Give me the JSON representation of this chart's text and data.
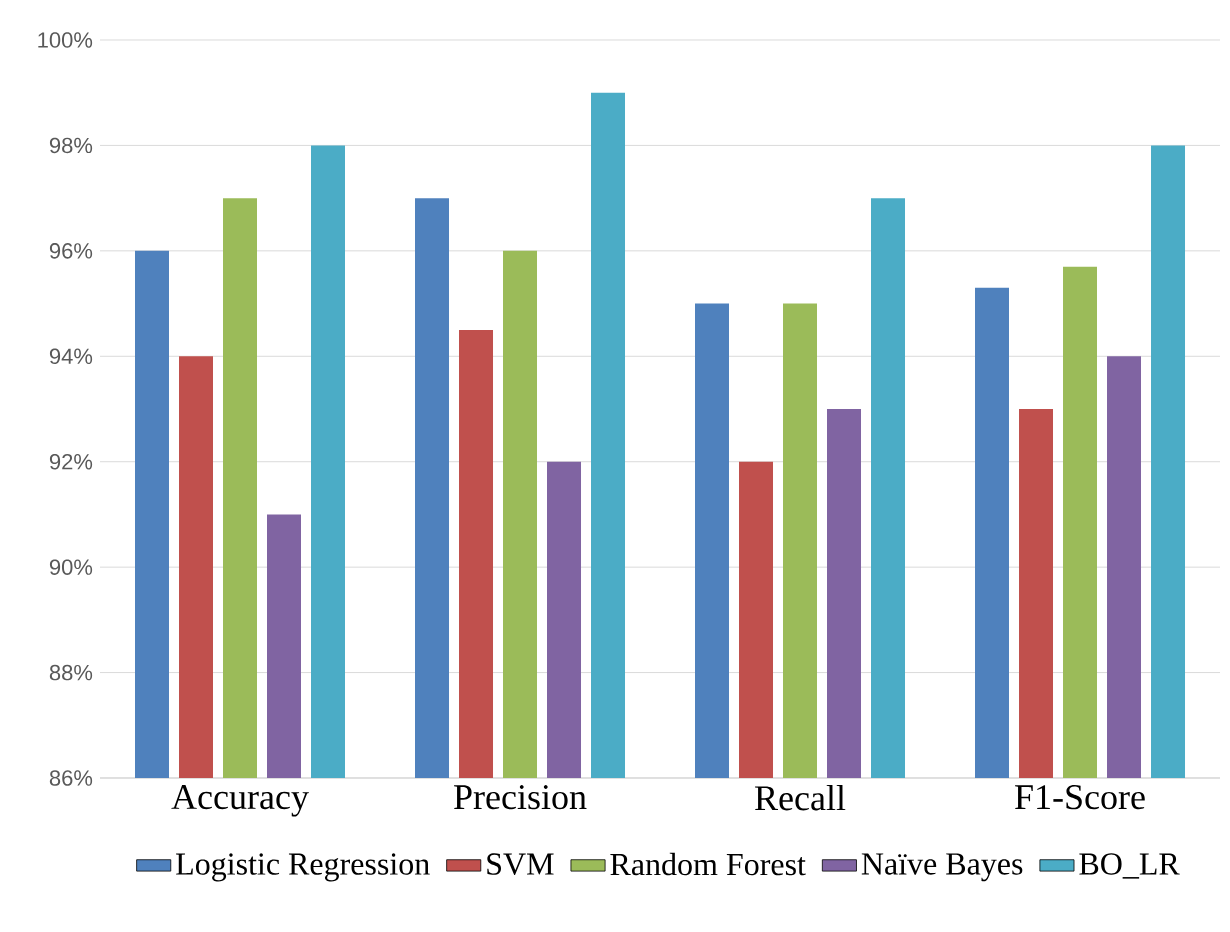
{
  "chart_data": {
    "type": "bar",
    "categories": [
      "Accuracy",
      "Precision",
      "Recall",
      "F1-Score"
    ],
    "series": [
      {
        "name": "Logistic Regression",
        "color": "#4f81bd",
        "values": [
          96,
          97,
          95,
          95.3
        ]
      },
      {
        "name": "SVM",
        "color": "#c0504d",
        "values": [
          94,
          94.5,
          92,
          93
        ]
      },
      {
        "name": "Random Forest",
        "color": "#9bbb59",
        "values": [
          97,
          96,
          95,
          95.7
        ]
      },
      {
        "name": "Naïve Bayes",
        "color": "#8064a2",
        "values": [
          91,
          92,
          93,
          94
        ]
      },
      {
        "name": "BO_LR",
        "color": "#4bacc6",
        "values": [
          98,
          99,
          97,
          98
        ]
      }
    ],
    "ylim": [
      86,
      100
    ],
    "yticks": [
      {
        "value": 86,
        "label": "86%"
      },
      {
        "value": 88,
        "label": "88%"
      },
      {
        "value": 90,
        "label": "90%"
      },
      {
        "value": 92,
        "label": "92%"
      },
      {
        "value": 94,
        "label": "94%"
      },
      {
        "value": 96,
        "label": "96%"
      },
      {
        "value": 98,
        "label": "98%"
      },
      {
        "value": 100,
        "label": "100%"
      }
    ],
    "grid": "y",
    "legend": "bottom"
  }
}
